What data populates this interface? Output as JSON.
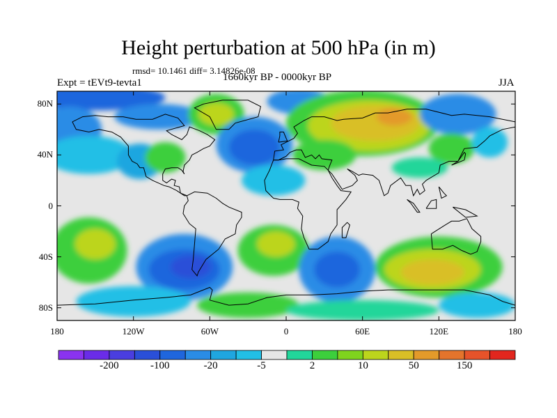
{
  "title": "Height perturbation at 500 hPa (in m)",
  "stats_line": "rmsd= 10.1461 diff= 3.14826e-08",
  "experiment_label": "Expt = tEVt9-tevta1",
  "period_label": "1660kyr BP - 0000kyr BP",
  "season_label": "JJA",
  "lat_ticks": [
    {
      "label": "80N",
      "lat": 80
    },
    {
      "label": "40N",
      "lat": 40
    },
    {
      "label": "0",
      "lat": 0
    },
    {
      "label": "40S",
      "lat": -40
    },
    {
      "label": "80S",
      "lat": -80
    }
  ],
  "lon_ticks": [
    {
      "label": "180",
      "lon": -180
    },
    {
      "label": "120W",
      "lon": -120
    },
    {
      "label": "60W",
      "lon": -60
    },
    {
      "label": "0",
      "lon": 0
    },
    {
      "label": "60E",
      "lon": 60
    },
    {
      "label": "120E",
      "lon": 120
    },
    {
      "label": "180",
      "lon": 180
    }
  ],
  "colorbar": {
    "colors": [
      "#8a33f0",
      "#6a2ce8",
      "#4a3ee0",
      "#2a4fd8",
      "#1f66dd",
      "#2a8ce6",
      "#1fa6e0",
      "#22bfe6",
      "#e6e6e6",
      "#22d69a",
      "#3ccf3c",
      "#7fd41e",
      "#bcd51c",
      "#d9bf26",
      "#e39a2a",
      "#e4742c",
      "#e6532a",
      "#e2261e"
    ],
    "labels": [
      {
        "text": "-200",
        "after_box": 1
      },
      {
        "text": "-100",
        "after_box": 3
      },
      {
        "text": "-20",
        "after_box": 5
      },
      {
        "text": "-5",
        "after_box": 7
      },
      {
        "text": "2",
        "after_box": 9
      },
      {
        "text": "10",
        "after_box": 11
      },
      {
        "text": "50",
        "after_box": 13
      },
      {
        "text": "150",
        "after_box": 15
      }
    ]
  },
  "field_blobs": [
    {
      "lon": -150,
      "lat": 85,
      "rx": 55,
      "ry": 10,
      "color": "#1f66dd"
    },
    {
      "lon": -100,
      "lat": 70,
      "rx": 35,
      "ry": 10,
      "color": "#2a8ce6"
    },
    {
      "lon": -170,
      "lat": 60,
      "rx": 25,
      "ry": 18,
      "color": "#2a8ce6"
    },
    {
      "lon": -155,
      "lat": 40,
      "rx": 35,
      "ry": 15,
      "color": "#22bfe6"
    },
    {
      "lon": -115,
      "lat": 35,
      "rx": 18,
      "ry": 14,
      "color": "#1fa6e0"
    },
    {
      "lon": -55,
      "lat": 72,
      "rx": 22,
      "ry": 16,
      "color": "#3ccf3c"
    },
    {
      "lon": -55,
      "lat": 72,
      "rx": 14,
      "ry": 9,
      "color": "#bcd51c"
    },
    {
      "lon": -95,
      "lat": 38,
      "rx": 16,
      "ry": 12,
      "color": "#3ccf3c"
    },
    {
      "lon": -25,
      "lat": 48,
      "rx": 30,
      "ry": 22,
      "color": "#2a8ce6"
    },
    {
      "lon": -25,
      "lat": 46,
      "rx": 20,
      "ry": 14,
      "color": "#1f66dd"
    },
    {
      "lon": 10,
      "lat": 82,
      "rx": 25,
      "ry": 10,
      "color": "#2a8ce6"
    },
    {
      "lon": -10,
      "lat": 20,
      "rx": 25,
      "ry": 12,
      "color": "#22bfe6"
    },
    {
      "lon": 60,
      "lat": 65,
      "rx": 60,
      "ry": 26,
      "color": "#3ccf3c"
    },
    {
      "lon": 65,
      "lat": 63,
      "rx": 48,
      "ry": 20,
      "color": "#bcd51c"
    },
    {
      "lon": 70,
      "lat": 65,
      "rx": 35,
      "ry": 14,
      "color": "#d9bf26"
    },
    {
      "lon": 85,
      "lat": 70,
      "rx": 14,
      "ry": 7,
      "color": "#e39a2a"
    },
    {
      "lon": 30,
      "lat": 40,
      "rx": 25,
      "ry": 12,
      "color": "#3ccf3c"
    },
    {
      "lon": 135,
      "lat": 72,
      "rx": 30,
      "ry": 16,
      "color": "#2a8ce6"
    },
    {
      "lon": 130,
      "lat": 45,
      "rx": 18,
      "ry": 12,
      "color": "#3ccf3c"
    },
    {
      "lon": 160,
      "lat": 50,
      "rx": 14,
      "ry": 12,
      "color": "#22bfe6"
    },
    {
      "lon": 105,
      "lat": 30,
      "rx": 22,
      "ry": 8,
      "color": "#22d69a"
    },
    {
      "lon": -155,
      "lat": -35,
      "rx": 30,
      "ry": 26,
      "color": "#3ccf3c"
    },
    {
      "lon": -150,
      "lat": -30,
      "rx": 16,
      "ry": 12,
      "color": "#bcd51c"
    },
    {
      "lon": -80,
      "lat": -48,
      "rx": 38,
      "ry": 26,
      "color": "#2a8ce6"
    },
    {
      "lon": -80,
      "lat": -50,
      "rx": 28,
      "ry": 16,
      "color": "#1f66dd"
    },
    {
      "lon": -75,
      "lat": -48,
      "rx": 16,
      "ry": 9,
      "color": "#2a4fd8"
    },
    {
      "lon": -10,
      "lat": -35,
      "rx": 28,
      "ry": 20,
      "color": "#3ccf3c"
    },
    {
      "lon": -8,
      "lat": -30,
      "rx": 15,
      "ry": 10,
      "color": "#bcd51c"
    },
    {
      "lon": 40,
      "lat": -50,
      "rx": 30,
      "ry": 26,
      "color": "#2a8ce6"
    },
    {
      "lon": 40,
      "lat": -50,
      "rx": 18,
      "ry": 14,
      "color": "#1f66dd"
    },
    {
      "lon": 120,
      "lat": -48,
      "rx": 50,
      "ry": 24,
      "color": "#3ccf3c"
    },
    {
      "lon": 115,
      "lat": -50,
      "rx": 38,
      "ry": 16,
      "color": "#bcd51c"
    },
    {
      "lon": 115,
      "lat": -52,
      "rx": 25,
      "ry": 10,
      "color": "#d9bf26"
    },
    {
      "lon": -120,
      "lat": -75,
      "rx": 45,
      "ry": 12,
      "color": "#22bfe6"
    },
    {
      "lon": -30,
      "lat": -78,
      "rx": 40,
      "ry": 10,
      "color": "#3ccf3c"
    },
    {
      "lon": 60,
      "lat": -82,
      "rx": 60,
      "ry": 8,
      "color": "#22d69a"
    },
    {
      "lon": 150,
      "lat": -78,
      "rx": 30,
      "ry": 10,
      "color": "#22bfe6"
    }
  ],
  "coastlines": [
    [
      [
        -168,
        66
      ],
      [
        -160,
        70
      ],
      [
        -150,
        71
      ],
      [
        -140,
        70
      ],
      [
        -128,
        70
      ],
      [
        -118,
        68
      ],
      [
        -105,
        68
      ],
      [
        -95,
        72
      ],
      [
        -85,
        69
      ],
      [
        -80,
        63
      ],
      [
        -94,
        59
      ],
      [
        -90,
        56
      ],
      [
        -82,
        52
      ],
      [
        -78,
        56
      ],
      [
        -76,
        62
      ],
      [
        -68,
        59
      ],
      [
        -62,
        56
      ],
      [
        -56,
        52
      ],
      [
        -60,
        47
      ],
      [
        -65,
        45
      ],
      [
        -70,
        42
      ],
      [
        -74,
        40
      ],
      [
        -76,
        36
      ],
      [
        -80,
        32
      ],
      [
        -81,
        27
      ],
      [
        -80,
        25
      ],
      [
        -82,
        28
      ],
      [
        -85,
        30
      ],
      [
        -90,
        30
      ],
      [
        -95,
        29
      ],
      [
        -97,
        25
      ],
      [
        -97,
        20
      ],
      [
        -94,
        18
      ],
      [
        -90,
        21
      ],
      [
        -87,
        20
      ],
      [
        -88,
        16
      ],
      [
        -84,
        15
      ],
      [
        -83,
        10
      ],
      [
        -78,
        8
      ],
      [
        -80,
        8
      ],
      [
        -86,
        12
      ],
      [
        -92,
        15
      ],
      [
        -96,
        16
      ],
      [
        -105,
        20
      ],
      [
        -110,
        23
      ],
      [
        -112,
        30
      ],
      [
        -115,
        30
      ],
      [
        -117,
        33
      ],
      [
        -121,
        35
      ],
      [
        -124,
        40
      ],
      [
        -124,
        47
      ],
      [
        -130,
        54
      ],
      [
        -137,
        58
      ],
      [
        -147,
        60
      ],
      [
        -155,
        58
      ],
      [
        -165,
        60
      ],
      [
        -168,
        66
      ]
    ],
    [
      [
        -55,
        60
      ],
      [
        -45,
        60
      ],
      [
        -40,
        65
      ],
      [
        -22,
        70
      ],
      [
        -20,
        78
      ],
      [
        -30,
        83
      ],
      [
        -50,
        83
      ],
      [
        -65,
        80
      ],
      [
        -72,
        77
      ],
      [
        -60,
        70
      ],
      [
        -55,
        60
      ]
    ],
    [
      [
        -78,
        8
      ],
      [
        -72,
        11
      ],
      [
        -62,
        10
      ],
      [
        -55,
        6
      ],
      [
        -50,
        2
      ],
      [
        -45,
        -1
      ],
      [
        -35,
        -5
      ],
      [
        -35,
        -9
      ],
      [
        -39,
        -15
      ],
      [
        -40,
        -22
      ],
      [
        -48,
        -26
      ],
      [
        -53,
        -34
      ],
      [
        -58,
        -38
      ],
      [
        -63,
        -42
      ],
      [
        -66,
        -47
      ],
      [
        -69,
        -52
      ],
      [
        -70,
        -55
      ],
      [
        -74,
        -50
      ],
      [
        -73,
        -42
      ],
      [
        -72,
        -30
      ],
      [
        -71,
        -18
      ],
      [
        -76,
        -14
      ],
      [
        -81,
        -6
      ],
      [
        -80,
        0
      ],
      [
        -77,
        4
      ],
      [
        -78,
        8
      ]
    ],
    [
      [
        -10,
        36
      ],
      [
        -9,
        43
      ],
      [
        -2,
        44
      ],
      [
        -4,
        48
      ],
      [
        2,
        51
      ],
      [
        6,
        53
      ],
      [
        9,
        57
      ],
      [
        6,
        62
      ],
      [
        14,
        67
      ],
      [
        20,
        70
      ],
      [
        30,
        70
      ],
      [
        40,
        67
      ],
      [
        45,
        68
      ],
      [
        60,
        69
      ],
      [
        70,
        73
      ],
      [
        80,
        73
      ],
      [
        95,
        76
      ],
      [
        110,
        76
      ],
      [
        130,
        71
      ],
      [
        140,
        72
      ],
      [
        160,
        70
      ],
      [
        170,
        68
      ],
      [
        180,
        66
      ],
      [
        180,
        62
      ],
      [
        170,
        60
      ],
      [
        160,
        55
      ],
      [
        156,
        51
      ],
      [
        150,
        46
      ],
      [
        140,
        45
      ],
      [
        135,
        35
      ],
      [
        128,
        35
      ],
      [
        121,
        32
      ],
      [
        120,
        26
      ],
      [
        110,
        20
      ],
      [
        107,
        17
      ],
      [
        109,
        12
      ],
      [
        105,
        9
      ],
      [
        103,
        13
      ],
      [
        100,
        8
      ],
      [
        98,
        16
      ],
      [
        94,
        16
      ],
      [
        90,
        22
      ],
      [
        82,
        16
      ],
      [
        80,
        10
      ],
      [
        77,
        8
      ],
      [
        73,
        20
      ],
      [
        68,
        24
      ],
      [
        60,
        25
      ],
      [
        57,
        24
      ],
      [
        52,
        27
      ],
      [
        48,
        29
      ],
      [
        54,
        24
      ],
      [
        56,
        20
      ],
      [
        52,
        16
      ],
      [
        44,
        13
      ],
      [
        36,
        25
      ],
      [
        33,
        28
      ],
      [
        34,
        31
      ],
      [
        36,
        36
      ],
      [
        28,
        37
      ],
      [
        26,
        40
      ],
      [
        23,
        37
      ],
      [
        20,
        40
      ],
      [
        15,
        38
      ],
      [
        12,
        44
      ],
      [
        8,
        44
      ],
      [
        3,
        42
      ],
      [
        0,
        39
      ],
      [
        -6,
        36
      ],
      [
        -10,
        36
      ]
    ],
    [
      [
        -10,
        36
      ],
      [
        -6,
        36
      ],
      [
        0,
        37
      ],
      [
        10,
        37
      ],
      [
        20,
        32
      ],
      [
        30,
        31
      ],
      [
        33,
        28
      ],
      [
        36,
        22
      ],
      [
        40,
        16
      ],
      [
        43,
        12
      ],
      [
        51,
        11
      ],
      [
        47,
        5
      ],
      [
        40,
        -3
      ],
      [
        40,
        -15
      ],
      [
        35,
        -22
      ],
      [
        33,
        -28
      ],
      [
        25,
        -34
      ],
      [
        18,
        -34
      ],
      [
        14,
        -25
      ],
      [
        12,
        -18
      ],
      [
        13,
        -8
      ],
      [
        9,
        -2
      ],
      [
        10,
        3
      ],
      [
        5,
        5
      ],
      [
        -5,
        5
      ],
      [
        -10,
        6
      ],
      [
        -16,
        12
      ],
      [
        -17,
        20
      ],
      [
        -13,
        28
      ],
      [
        -10,
        36
      ]
    ],
    [
      [
        -6,
        50
      ],
      [
        -5,
        55
      ],
      [
        -5,
        58
      ],
      [
        -2,
        58
      ],
      [
        0,
        53
      ],
      [
        1,
        51
      ],
      [
        -6,
        50
      ]
    ],
    [
      [
        114,
        -22
      ],
      [
        115,
        -34
      ],
      [
        123,
        -34
      ],
      [
        131,
        -31
      ],
      [
        138,
        -35
      ],
      [
        145,
        -38
      ],
      [
        150,
        -36
      ],
      [
        153,
        -28
      ],
      [
        153,
        -24
      ],
      [
        146,
        -18
      ],
      [
        142,
        -10
      ],
      [
        136,
        -12
      ],
      [
        130,
        -12
      ],
      [
        125,
        -15
      ],
      [
        114,
        -22
      ]
    ],
    [
      [
        44,
        -25
      ],
      [
        47,
        -25
      ],
      [
        50,
        -15
      ],
      [
        48,
        -13
      ],
      [
        44,
        -17
      ],
      [
        44,
        -25
      ]
    ],
    [
      [
        130,
        32
      ],
      [
        135,
        34
      ],
      [
        140,
        36
      ],
      [
        141,
        41
      ],
      [
        140,
        42
      ],
      [
        135,
        35
      ],
      [
        130,
        32
      ]
    ],
    [
      [
        -180,
        -78
      ],
      [
        -150,
        -77
      ],
      [
        -120,
        -74
      ],
      [
        -95,
        -72
      ],
      [
        -75,
        -70
      ],
      [
        -60,
        -64
      ],
      [
        -58,
        -66
      ],
      [
        -60,
        -74
      ],
      [
        -45,
        -78
      ],
      [
        -30,
        -77
      ],
      [
        -15,
        -72
      ],
      [
        0,
        -70
      ],
      [
        20,
        -70
      ],
      [
        40,
        -69
      ],
      [
        60,
        -67
      ],
      [
        80,
        -66
      ],
      [
        100,
        -66
      ],
      [
        120,
        -66
      ],
      [
        140,
        -66
      ],
      [
        160,
        -70
      ],
      [
        170,
        -75
      ],
      [
        180,
        -78
      ]
    ],
    [
      [
        95,
        5
      ],
      [
        100,
        2
      ],
      [
        105,
        -5
      ],
      [
        103,
        -5
      ],
      [
        98,
        2
      ],
      [
        95,
        5
      ]
    ],
    [
      [
        110,
        -2
      ],
      [
        118,
        -2
      ],
      [
        118,
        5
      ],
      [
        114,
        4
      ],
      [
        110,
        -2
      ]
    ],
    [
      [
        131,
        -1
      ],
      [
        141,
        -3
      ],
      [
        150,
        -8
      ],
      [
        141,
        -9
      ],
      [
        131,
        -1
      ]
    ],
    [
      [
        120,
        15
      ],
      [
        124,
        10
      ],
      [
        126,
        8
      ],
      [
        122,
        6
      ],
      [
        120,
        15
      ]
    ]
  ]
}
